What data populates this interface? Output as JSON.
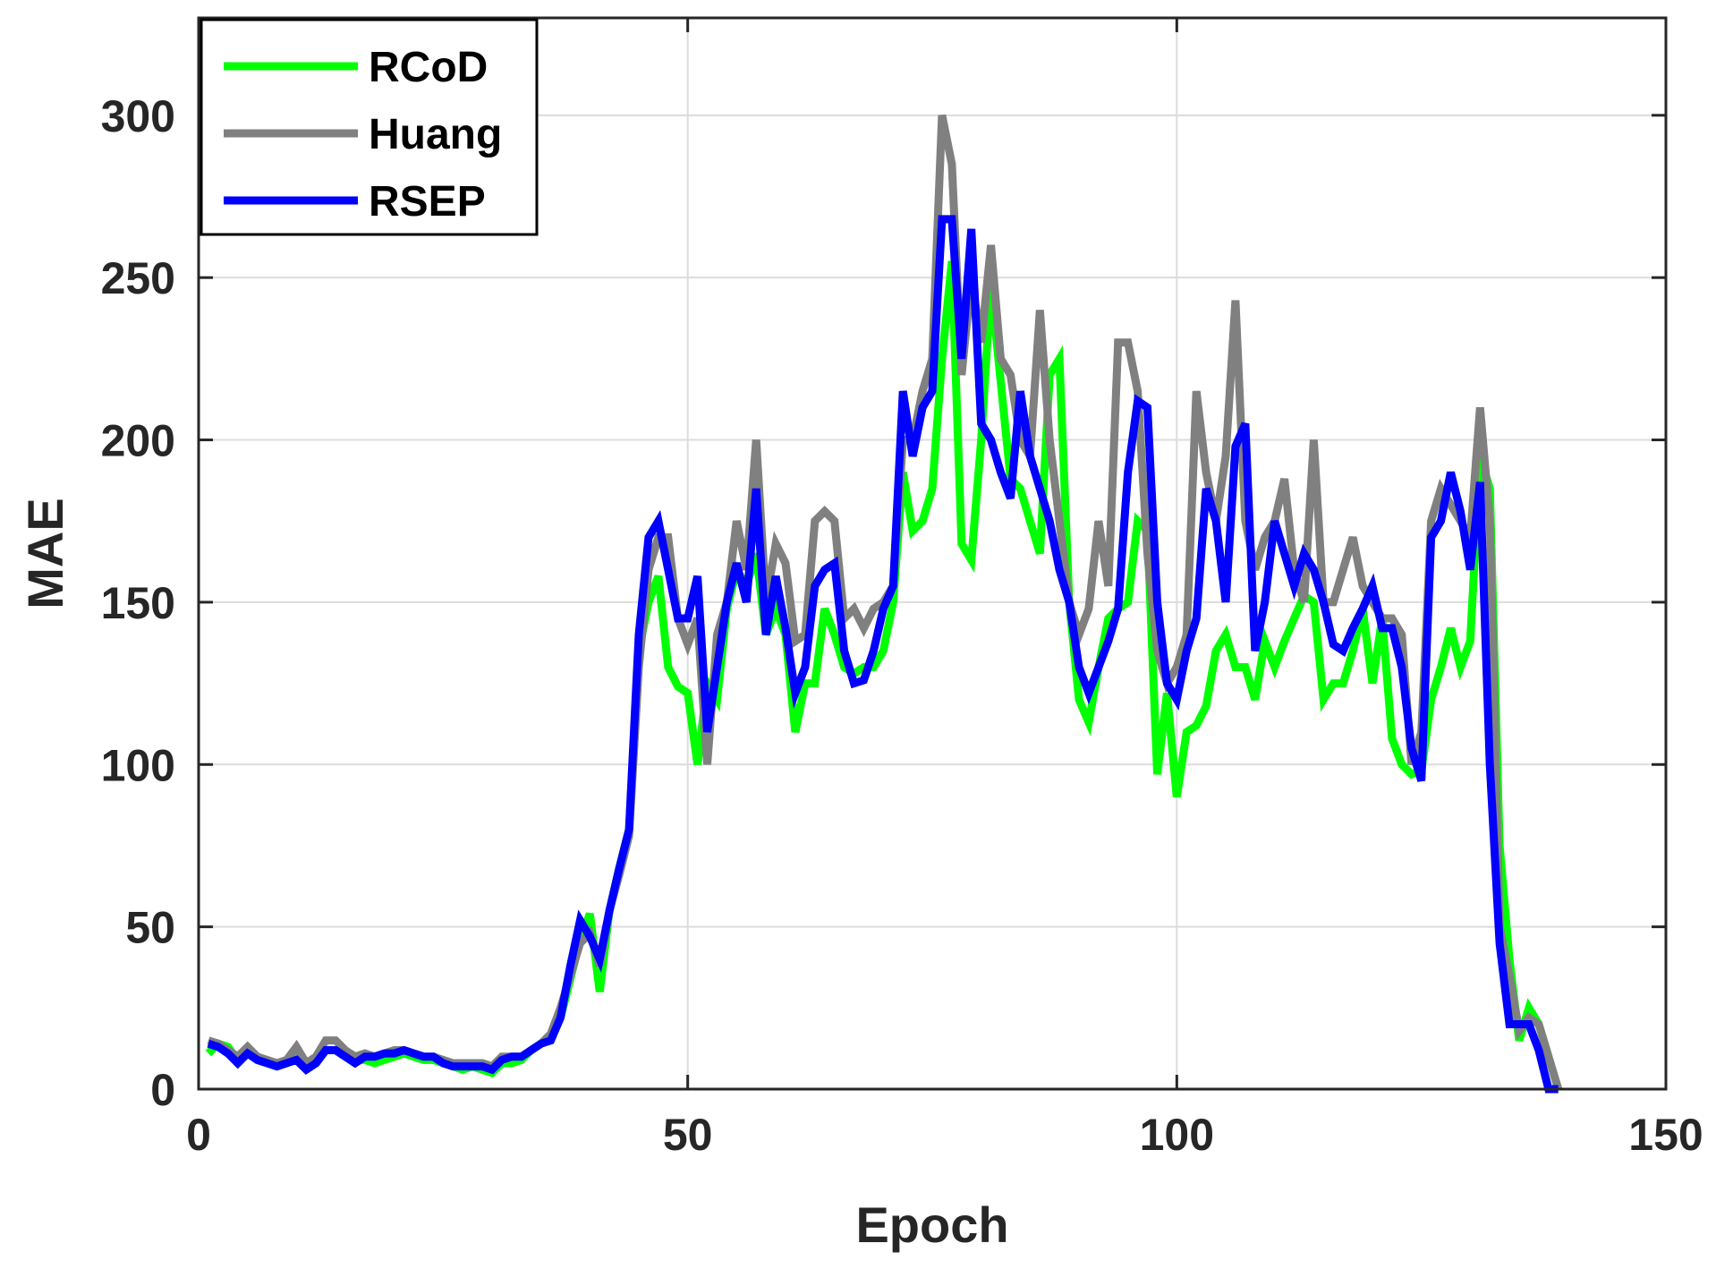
{
  "chart_data": {
    "type": "line",
    "xlabel": "Epoch",
    "ylabel": "MAE",
    "xlim": [
      0,
      150
    ],
    "ylim": [
      0,
      330
    ],
    "xticks": [
      0,
      50,
      100,
      150
    ],
    "yticks": [
      0,
      50,
      100,
      150,
      200,
      250,
      300
    ],
    "grid": true,
    "legend_position": "top-left",
    "series": [
      {
        "name": "RCoD",
        "color": "#00ff00",
        "x": [
          1,
          2,
          3,
          4,
          5,
          6,
          7,
          8,
          9,
          10,
          11,
          12,
          13,
          14,
          15,
          16,
          17,
          18,
          19,
          20,
          21,
          22,
          23,
          24,
          25,
          26,
          27,
          28,
          29,
          30,
          31,
          32,
          33,
          34,
          35,
          36,
          37,
          38,
          39,
          40,
          41,
          42,
          43,
          44,
          45,
          46,
          47,
          48,
          49,
          50,
          51,
          52,
          53,
          54,
          55,
          56,
          57,
          58,
          59,
          60,
          61,
          62,
          63,
          64,
          65,
          66,
          67,
          68,
          69,
          70,
          71,
          72,
          73,
          74,
          75,
          76,
          77,
          78,
          79,
          80,
          81,
          82,
          83,
          84,
          85,
          86,
          87,
          88,
          89,
          90,
          91,
          92,
          93,
          94,
          95,
          96,
          97,
          98,
          99,
          100,
          101,
          102,
          103,
          104,
          105,
          106,
          107,
          108,
          109,
          110,
          111,
          112,
          113,
          114,
          115,
          116,
          117,
          118,
          119,
          120,
          121,
          122,
          123,
          124,
          125,
          126,
          127,
          128,
          129,
          130,
          131,
          132,
          133,
          134,
          135,
          136,
          137,
          138,
          139
        ],
        "values": [
          11,
          14,
          13,
          9,
          12,
          9,
          8,
          7,
          8,
          10,
          7,
          8,
          12,
          12,
          10,
          9,
          9,
          8,
          9,
          10,
          11,
          10,
          9,
          9,
          8,
          7,
          6,
          7,
          6,
          5,
          8,
          8,
          9,
          12,
          14,
          16,
          22,
          34,
          46,
          54,
          30,
          55,
          68,
          80,
          135,
          150,
          158,
          130,
          124,
          122,
          100,
          125,
          120,
          148,
          160,
          155,
          165,
          140,
          148,
          140,
          110,
          125,
          125,
          148,
          140,
          130,
          128,
          130,
          130,
          135,
          150,
          190,
          172,
          175,
          185,
          225,
          255,
          168,
          163,
          200,
          248,
          218,
          188,
          185,
          175,
          165,
          220,
          225,
          150,
          120,
          113,
          130,
          145,
          148,
          150,
          175,
          172,
          97,
          122,
          90,
          110,
          112,
          118,
          135,
          140,
          130,
          130,
          120,
          138,
          130,
          138,
          145,
          152,
          150,
          120,
          125,
          125,
          135,
          148,
          125,
          145,
          108,
          100,
          97,
          98,
          120,
          130,
          142,
          130,
          138,
          195,
          185,
          75,
          40,
          15,
          25,
          20,
          10,
          0
        ]
      },
      {
        "name": "Huang",
        "color": "#808080",
        "x": [
          1,
          2,
          3,
          4,
          5,
          6,
          7,
          8,
          9,
          10,
          11,
          12,
          13,
          14,
          15,
          16,
          17,
          18,
          19,
          20,
          21,
          22,
          23,
          24,
          25,
          26,
          27,
          28,
          29,
          30,
          31,
          32,
          33,
          34,
          35,
          36,
          37,
          38,
          39,
          40,
          41,
          42,
          43,
          44,
          45,
          46,
          47,
          48,
          49,
          50,
          51,
          52,
          53,
          54,
          55,
          56,
          57,
          58,
          59,
          60,
          61,
          62,
          63,
          64,
          65,
          66,
          67,
          68,
          69,
          70,
          71,
          72,
          73,
          74,
          75,
          76,
          77,
          78,
          79,
          80,
          81,
          82,
          83,
          84,
          85,
          86,
          87,
          88,
          89,
          90,
          91,
          92,
          93,
          94,
          95,
          96,
          97,
          98,
          99,
          100,
          101,
          102,
          103,
          104,
          105,
          106,
          107,
          108,
          109,
          110,
          111,
          112,
          113,
          114,
          115,
          116,
          117,
          118,
          119,
          120,
          121,
          122,
          123,
          124,
          125,
          126,
          127,
          128,
          129,
          130,
          131,
          132,
          133,
          134,
          135,
          136,
          137,
          138,
          139
        ],
        "values": [
          15,
          14,
          12,
          10,
          13,
          10,
          9,
          8,
          9,
          13,
          8,
          10,
          15,
          15,
          12,
          10,
          11,
          10,
          11,
          12,
          12,
          11,
          10,
          10,
          9,
          8,
          8,
          8,
          8,
          7,
          10,
          10,
          10,
          12,
          14,
          17,
          25,
          35,
          45,
          48,
          38,
          55,
          66,
          78,
          130,
          160,
          170,
          170,
          145,
          137,
          145,
          100,
          140,
          150,
          175,
          160,
          200,
          150,
          168,
          162,
          138,
          140,
          175,
          178,
          175,
          145,
          148,
          142,
          148,
          150,
          155,
          200,
          200,
          215,
          225,
          300,
          285,
          220,
          250,
          230,
          260,
          225,
          220,
          200,
          195,
          240,
          200,
          175,
          150,
          140,
          148,
          175,
          155,
          230,
          230,
          215,
          165,
          135,
          125,
          130,
          140,
          215,
          190,
          175,
          195,
          243,
          175,
          160,
          170,
          175,
          188,
          160,
          150,
          200,
          150,
          150,
          160,
          170,
          155,
          150,
          145,
          145,
          140,
          100,
          110,
          175,
          185,
          180,
          175,
          170,
          210,
          175,
          50,
          35,
          18,
          22,
          20,
          10,
          0
        ]
      },
      {
        "name": "RSEP",
        "color": "#0000ff",
        "x": [
          1,
          2,
          3,
          4,
          5,
          6,
          7,
          8,
          9,
          10,
          11,
          12,
          13,
          14,
          15,
          16,
          17,
          18,
          19,
          20,
          21,
          22,
          23,
          24,
          25,
          26,
          27,
          28,
          29,
          30,
          31,
          32,
          33,
          34,
          35,
          36,
          37,
          38,
          39,
          40,
          41,
          42,
          43,
          44,
          45,
          46,
          47,
          48,
          49,
          50,
          51,
          52,
          53,
          54,
          55,
          56,
          57,
          58,
          59,
          60,
          61,
          62,
          63,
          64,
          65,
          66,
          67,
          68,
          69,
          70,
          71,
          72,
          73,
          74,
          75,
          76,
          77,
          78,
          79,
          80,
          81,
          82,
          83,
          84,
          85,
          86,
          87,
          88,
          89,
          90,
          91,
          92,
          93,
          94,
          95,
          96,
          97,
          98,
          99,
          100,
          101,
          102,
          103,
          104,
          105,
          106,
          107,
          108,
          109,
          110,
          111,
          112,
          113,
          114,
          115,
          116,
          117,
          118,
          119,
          120,
          121,
          122,
          123,
          124,
          125,
          126,
          127,
          128,
          129,
          130,
          131,
          132,
          133,
          134,
          135,
          136,
          137,
          138,
          139
        ],
        "values": [
          14,
          13,
          11,
          8,
          11,
          9,
          8,
          7,
          8,
          9,
          6,
          8,
          12,
          12,
          10,
          8,
          10,
          10,
          11,
          11,
          12,
          11,
          10,
          10,
          8,
          7,
          7,
          7,
          7,
          6,
          9,
          10,
          10,
          12,
          14,
          15,
          22,
          38,
          52,
          47,
          40,
          55,
          68,
          80,
          140,
          170,
          175,
          160,
          145,
          145,
          158,
          110,
          130,
          150,
          162,
          150,
          185,
          140,
          158,
          142,
          122,
          130,
          155,
          160,
          162,
          135,
          125,
          126,
          135,
          148,
          155,
          215,
          195,
          210,
          215,
          268,
          268,
          225,
          265,
          205,
          200,
          190,
          182,
          215,
          195,
          185,
          175,
          160,
          150,
          130,
          122,
          130,
          138,
          148,
          190,
          212,
          210,
          150,
          125,
          120,
          135,
          145,
          185,
          175,
          150,
          198,
          205,
          135,
          150,
          175,
          165,
          155,
          165,
          160,
          150,
          137,
          135,
          142,
          148,
          155,
          142,
          142,
          130,
          105,
          95,
          170,
          175,
          190,
          178,
          160,
          187,
          100,
          45,
          20,
          20,
          20,
          12,
          0,
          0
        ]
      }
    ]
  }
}
